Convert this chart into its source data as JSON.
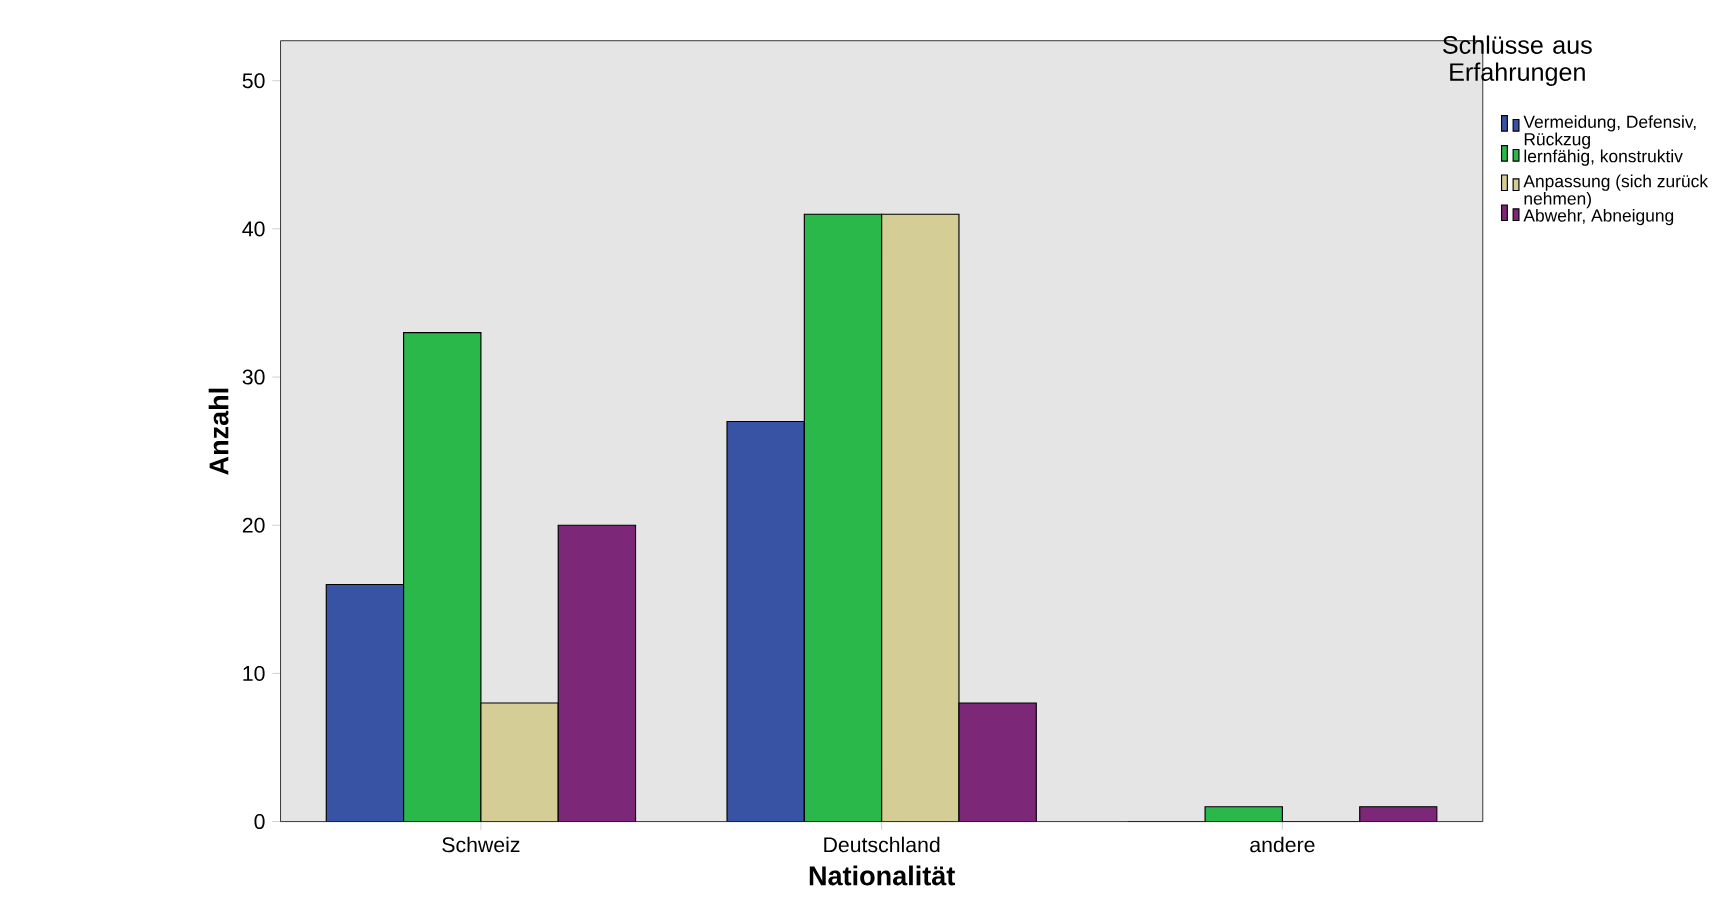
{
  "chart_data": {
    "type": "bar",
    "xlabel": "Nationalität",
    "ylabel": "Anzahl",
    "legend_title": "Schlüsse aus Erfahrungen",
    "categories": [
      "Schweiz",
      "Deutschland",
      "andere"
    ],
    "series": [
      {
        "name": "Vermeidung, Defensiv, Rückzug",
        "color": "#3953a4",
        "values": [
          16,
          27,
          0
        ]
      },
      {
        "name": "lernfähig, konstruktiv",
        "color": "#2bb84a",
        "values": [
          33,
          41,
          1
        ]
      },
      {
        "name": "Anpassung (sich zurück nehmen)",
        "color": "#d4ce96",
        "values": [
          8,
          41,
          0
        ]
      },
      {
        "name": "Abwehr, Abneigung",
        "color": "#7c2778",
        "values": [
          20,
          8,
          1
        ]
      }
    ],
    "ylim": [
      0,
      52.7
    ],
    "yticks": [
      0,
      10,
      20,
      30,
      40,
      50
    ],
    "grid": false,
    "legend": "right"
  }
}
